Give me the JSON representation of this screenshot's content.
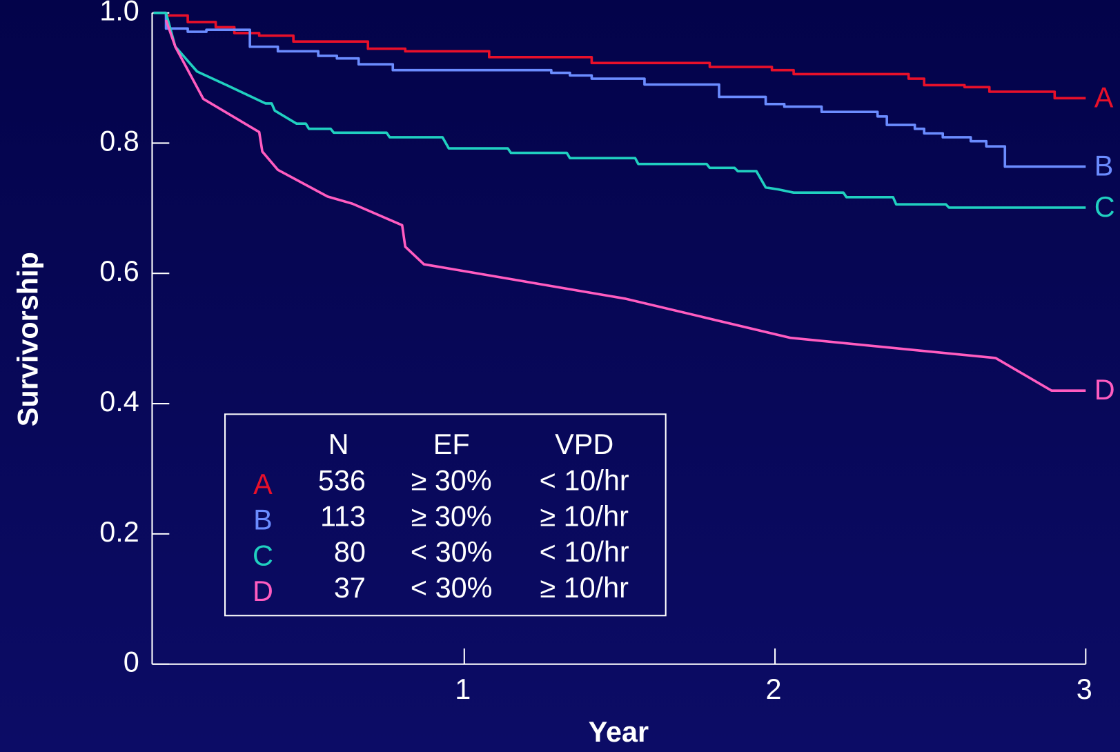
{
  "chart_data": {
    "type": "line",
    "y_label": "Survivorship",
    "x_label": "Year",
    "xlim": [
      0,
      3
    ],
    "ylim": [
      0,
      1
    ],
    "xticks": [
      1,
      2,
      3
    ],
    "yticks": [
      0,
      0.2,
      0.4,
      0.6,
      0.8,
      {
        "value": 1,
        "label": "1.0"
      }
    ],
    "series": [
      {
        "name": "A",
        "color": "#e8102a",
        "step": true,
        "x": [
          0,
          0.04,
          0.11,
          0.2,
          0.26,
          0.34,
          0.45,
          0.69,
          0.81,
          1.08,
          1.41,
          1.79,
          1.99,
          2.06,
          2.43,
          2.48,
          2.61,
          2.69,
          2.9,
          3.0
        ],
        "values": [
          1.0,
          0.996,
          0.986,
          0.978,
          0.969,
          0.965,
          0.956,
          0.945,
          0.941,
          0.932,
          0.923,
          0.917,
          0.912,
          0.906,
          0.899,
          0.889,
          0.886,
          0.879,
          0.869,
          0.869
        ]
      },
      {
        "name": "B",
        "color": "#6b8cff",
        "step": true,
        "x": [
          0,
          0.04,
          0.11,
          0.17,
          0.31,
          0.4,
          0.53,
          0.59,
          0.66,
          0.77,
          1.28,
          1.34,
          1.41,
          1.58,
          1.82,
          1.97,
          2.03,
          2.15,
          2.33,
          2.36,
          2.45,
          2.48,
          2.54,
          2.63,
          2.68,
          2.74,
          3.0
        ],
        "values": [
          1.0,
          0.976,
          0.971,
          0.974,
          0.948,
          0.941,
          0.934,
          0.93,
          0.921,
          0.912,
          0.908,
          0.904,
          0.899,
          0.89,
          0.871,
          0.86,
          0.856,
          0.848,
          0.841,
          0.828,
          0.822,
          0.815,
          0.809,
          0.803,
          0.795,
          0.764,
          0.764
        ]
      },
      {
        "name": "C",
        "color": "#20d0c0",
        "x": [
          0,
          0.04,
          0.07,
          0.14,
          0.24,
          0.36,
          0.38,
          0.39,
          0.46,
          0.49,
          0.5,
          0.57,
          0.58,
          0.75,
          0.76,
          0.93,
          0.95,
          1.14,
          1.15,
          1.33,
          1.34,
          1.55,
          1.56,
          1.78,
          1.79,
          1.87,
          1.88,
          1.94,
          1.97,
          2.01,
          2.06,
          2.22,
          2.23,
          2.38,
          2.39,
          2.55,
          2.56,
          3.0
        ],
        "values": [
          1.0,
          1.0,
          0.948,
          0.91,
          0.888,
          0.861,
          0.861,
          0.85,
          0.83,
          0.83,
          0.822,
          0.822,
          0.816,
          0.816,
          0.809,
          0.809,
          0.792,
          0.792,
          0.785,
          0.785,
          0.777,
          0.777,
          0.768,
          0.768,
          0.762,
          0.762,
          0.757,
          0.757,
          0.732,
          0.729,
          0.724,
          0.724,
          0.717,
          0.717,
          0.706,
          0.706,
          0.701,
          0.701
        ]
      },
      {
        "name": "D",
        "color": "#ff5cc0",
        "x": [
          0.04,
          0.07,
          0.16,
          0.34,
          0.35,
          0.4,
          0.56,
          0.64,
          0.8,
          0.81,
          0.87,
          1.52,
          2.05,
          2.71,
          2.89,
          3.0
        ],
        "values": [
          0.989,
          0.948,
          0.868,
          0.817,
          0.787,
          0.759,
          0.718,
          0.707,
          0.674,
          0.641,
          0.614,
          0.561,
          0.501,
          0.47,
          0.42,
          0.42
        ]
      }
    ],
    "table": {
      "columns": [
        "N",
        "EF",
        "VPD"
      ],
      "rows": [
        [
          536,
          "≥ 30%",
          "< 10/hr"
        ],
        [
          113,
          "≥ 30%",
          "≥ 10/hr"
        ],
        [
          80,
          "< 30%",
          "< 10/hr"
        ],
        [
          37,
          "< 30%",
          "≥ 10/hr"
        ]
      ]
    }
  }
}
